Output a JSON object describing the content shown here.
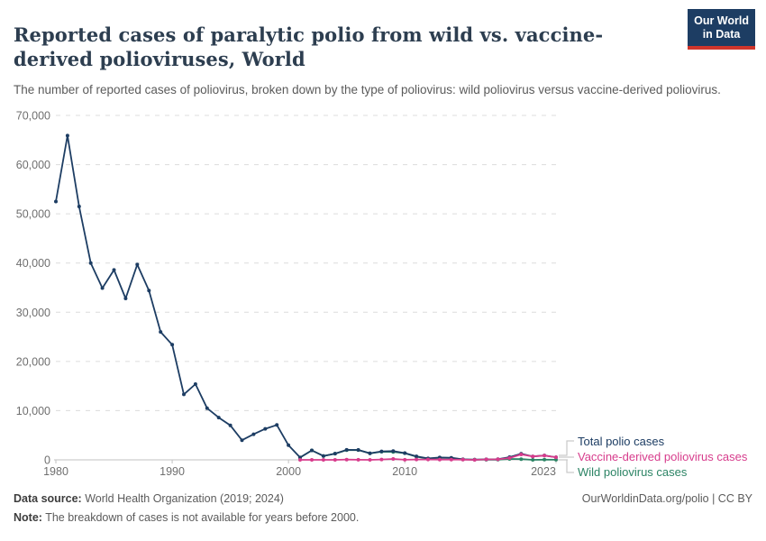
{
  "header": {
    "title": "Reported cases of paralytic polio from wild vs. vaccine-derived polioviruses, World",
    "subtitle": "The number of reported cases of poliovirus, broken down by the type of poliovirus: wild poliovirus versus vaccine-derived poliovirus.",
    "logo": {
      "line1": "Our World",
      "line2": "in Data",
      "bg_color": "#1d3d63",
      "stripe_color": "#d0352b"
    }
  },
  "chart_data": {
    "type": "line",
    "title": "Reported cases of paralytic polio from wild vs. vaccine-derived polioviruses, World",
    "xlabel": "",
    "ylabel": "",
    "xlim": [
      1980,
      2023
    ],
    "ylim": [
      0,
      70000
    ],
    "xticks": [
      1980,
      1990,
      2000,
      2010,
      2023
    ],
    "yticks": [
      0,
      10000,
      20000,
      30000,
      40000,
      50000,
      60000,
      70000
    ],
    "grid": "horizontal-dashed",
    "legend_position": "right-of-line-ends",
    "series": [
      {
        "name": "Total polio cases",
        "color": "#1d3d63",
        "start_year": 1980,
        "values": [
          52500,
          65900,
          51500,
          40000,
          34900,
          38600,
          32800,
          39700,
          34400,
          26000,
          23400,
          13300,
          15400,
          10500,
          8600,
          7000,
          4000,
          5200,
          6300,
          7100,
          2970,
          480,
          1920,
          786,
          1260,
          2030,
          2020,
          1315,
          1720,
          1784,
          1367,
          717,
          291,
          480,
          415,
          106,
          42,
          118,
          137,
          545,
          1240,
          694,
          892,
          535
        ]
      },
      {
        "name": "Vaccine-derived poliovirus cases",
        "color": "#d73c8c",
        "start_year": 2001,
        "values": [
          0,
          2,
          2,
          2,
          50,
          20,
          0,
          68,
          180,
          15,
          67,
          68,
          64,
          56,
          32,
          5,
          96,
          104,
          369,
          1100,
          688,
          862,
          523
        ]
      },
      {
        "name": "Wild poliovirus cases",
        "color": "#2c8465",
        "start_year": 2001,
        "values": [
          480,
          1918,
          784,
          1258,
          1980,
          2000,
          1315,
          1652,
          1604,
          1352,
          650,
          223,
          416,
          359,
          74,
          37,
          22,
          33,
          176,
          140,
          6,
          30,
          12
        ]
      }
    ]
  },
  "footer": {
    "source_label": "Data source:",
    "source_text": " World Health Organization (2019; 2024)",
    "note_label": "Note:",
    "note_text": " The breakdown of cases is not available for years before 2000.",
    "attribution": "OurWorldinData.org/polio | CC BY"
  }
}
